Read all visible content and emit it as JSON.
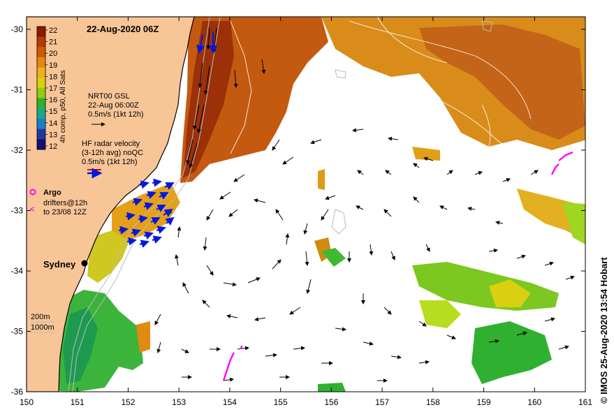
{
  "map": {
    "title": "22-Aug-2020 06Z",
    "credit": "©  IMOS 25-Aug-2020 13:54 Hobart",
    "x_ticks": [
      "150",
      "151",
      "152",
      "153",
      "154",
      "155",
      "156",
      "157",
      "158",
      "159",
      "160",
      "161"
    ],
    "y_ticks": [
      "-30",
      "-31",
      "-32",
      "-33",
      "-34",
      "-35",
      "-36"
    ],
    "colorbar": {
      "label": "4h comp, p50, All Sats",
      "ticks": [
        "22",
        "21",
        "20",
        "19",
        "18",
        "17",
        "16",
        "15",
        "14",
        "13",
        "12"
      ],
      "colors": [
        "#8b1a00",
        "#b83800",
        "#d05a00",
        "#e08a10",
        "#eeb01e",
        "#d8d010",
        "#90cc10",
        "#30b030",
        "#18a888",
        "#1880c8",
        "#2038a0",
        "#101070"
      ]
    },
    "legend": {
      "gsl_title": "NRT00 GSL",
      "gsl_time": "22-Aug 06:00Z",
      "gsl_scale": "0.5m/s (1kt 12h)",
      "hf_title": "HF radar velocity",
      "hf_avg": "(3-12h avg) noQC",
      "hf_scale": "0.5m/s (1kt 12h)",
      "argo": "Argo",
      "drifters": "drifters@12h",
      "drifters_to": "to 23/08 12Z"
    },
    "city": "Sydney",
    "isobath_200": "200m",
    "isobath_1000": "1000m"
  }
}
